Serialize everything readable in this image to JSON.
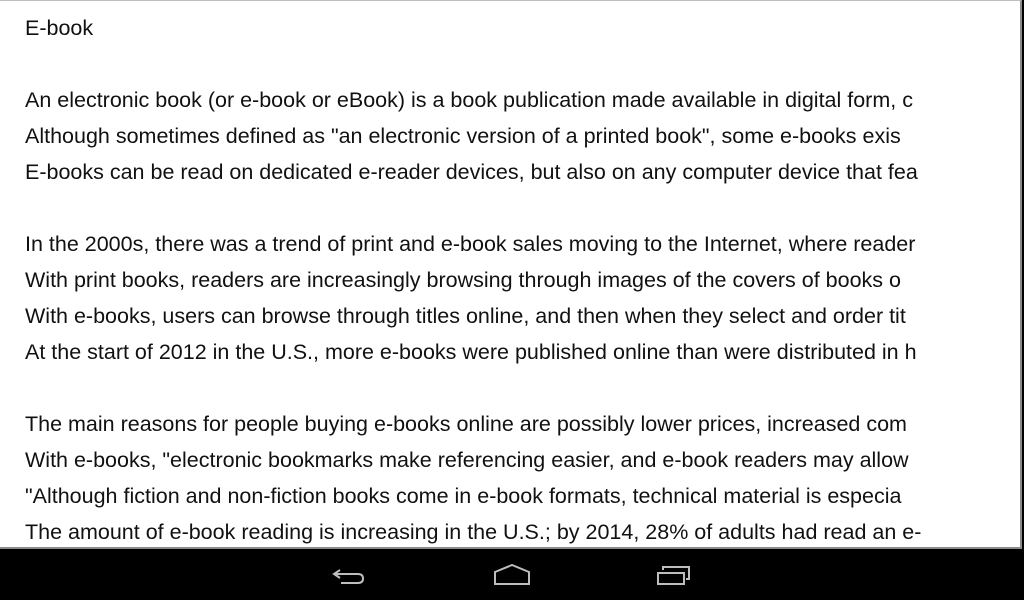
{
  "document": {
    "title": "E-book",
    "lines": [
      "An electronic book (or e-book or eBook) is a book publication made available in digital form, c",
      "Although sometimes defined as \"an electronic version of a printed book\", some e-books exis",
      "E-books can be read on dedicated e-reader devices, but also on any computer device that fea",
      "",
      "In the 2000s, there was a trend of print and e-book sales moving to the Internet, where reader",
      "With print books, readers are increasingly browsing through images of the covers of books o",
      "With e-books, users can browse through titles online, and then when they select and order tit",
      "At the start of 2012 in the U.S., more e-books were published online than were distributed in h",
      "",
      "The main reasons for people buying e-books online are possibly lower prices, increased com",
      "With e-books, \"electronic bookmarks make referencing easier, and e-book readers may allow",
      "\"Although fiction and non-fiction books come in e-book formats, technical material is especia",
      "The amount of e-book reading is increasing in the U.S.; by 2014, 28% of adults had read an e-"
    ]
  },
  "navbar": {
    "icons": [
      "back-icon",
      "home-icon",
      "recent-apps-icon"
    ],
    "icon_color": "#bdbdbd"
  }
}
